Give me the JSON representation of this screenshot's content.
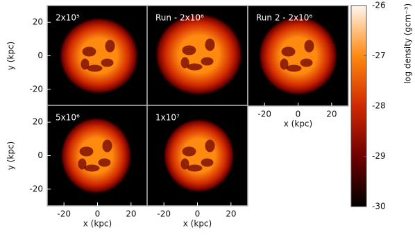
{
  "chart_data": [
    {
      "type": "image",
      "title": "2x10⁵",
      "xlim": [
        -30,
        30
      ],
      "ylim": [
        -30,
        30
      ],
      "yticks": [
        -20,
        0,
        20
      ],
      "ylabel": "y (kpc)"
    },
    {
      "type": "image",
      "title": "Run  - 2x10⁶",
      "xlim": [
        -30,
        30
      ],
      "ylim": [
        -30,
        30
      ]
    },
    {
      "type": "image",
      "title": "Run 2 - 2x10⁶",
      "xlim": [
        -30,
        30
      ],
      "ylim": [
        -30,
        30
      ],
      "xticks": [
        -20,
        0,
        20
      ],
      "xlabel": "x (kpc)"
    },
    {
      "type": "image",
      "title": "5x10⁶",
      "xlim": [
        -30,
        30
      ],
      "ylim": [
        -30,
        30
      ],
      "xticks": [
        -20,
        0,
        20
      ],
      "yticks": [
        -20,
        0,
        20
      ],
      "xlabel": "x (kpc)",
      "ylabel": "y (kpc)"
    },
    {
      "type": "image",
      "title": "1x10⁷",
      "xlim": [
        -30,
        30
      ],
      "ylim": [
        -30,
        30
      ],
      "xticks": [
        -20,
        0,
        20
      ],
      "xlabel": "x (kpc)"
    },
    {
      "type": "colorbar",
      "label": "log density (gcm⁻³)",
      "ylim": [
        -30,
        -26
      ],
      "yticks": [
        -30,
        -29,
        -28,
        -27,
        -26
      ],
      "colors": [
        "#000000",
        "#6e0000",
        "#d02800",
        "#ff8a10",
        "#fff6ee"
      ]
    }
  ]
}
